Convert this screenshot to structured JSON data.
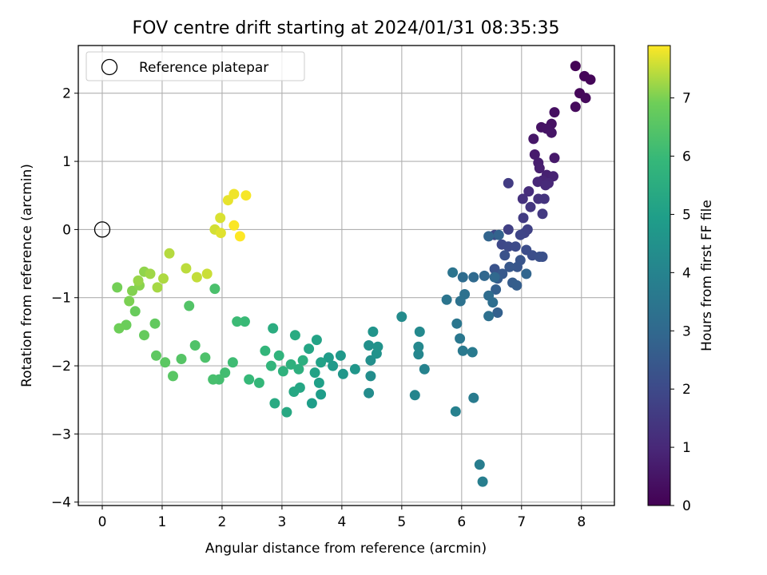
{
  "chart_data": {
    "type": "scatter",
    "title": "FOV centre drift starting at 2024/01/31 08:35:35",
    "xlabel": "Angular distance from reference (arcmin)",
    "ylabel": "Rotation from reference (arcmin)",
    "colorbar_label": "Hours from first FF file",
    "colormap": "viridis",
    "xlim": [
      -0.4,
      8.55
    ],
    "ylim": [
      -4.05,
      2.7
    ],
    "clim": [
      0,
      7.9
    ],
    "xticks": [
      "0",
      "1",
      "2",
      "3",
      "4",
      "5",
      "6",
      "7",
      "8"
    ],
    "yticks": [
      "−4",
      "−3",
      "−2",
      "−1",
      "0",
      "1",
      "2"
    ],
    "colorbar_ticks": [
      "0",
      "1",
      "2",
      "3",
      "4",
      "5",
      "6",
      "7"
    ],
    "grid": true,
    "legend": {
      "placement": "upper-left",
      "entries": [
        {
          "label": "Reference platepar",
          "marker": "hollow-circle",
          "x": 0,
          "y": 0
        }
      ]
    },
    "series": [
      {
        "points": [
          [
            7.9,
            2.4,
            0.05
          ],
          [
            8.05,
            2.25,
            0.1
          ],
          [
            8.15,
            2.2,
            0.12
          ],
          [
            7.97,
            2.0,
            0.15
          ],
          [
            8.07,
            1.93,
            0.2
          ],
          [
            7.9,
            1.8,
            0.22
          ],
          [
            7.55,
            1.72,
            0.35
          ],
          [
            7.5,
            1.55,
            0.4
          ],
          [
            7.33,
            1.5,
            0.45
          ],
          [
            7.42,
            1.48,
            0.48
          ],
          [
            7.5,
            1.42,
            0.5
          ],
          [
            7.2,
            1.33,
            0.55
          ],
          [
            7.55,
            1.05,
            0.6
          ],
          [
            7.22,
            1.1,
            0.65
          ],
          [
            7.28,
            0.98,
            0.7
          ],
          [
            7.3,
            0.9,
            0.75
          ],
          [
            7.42,
            0.8,
            0.8
          ],
          [
            7.53,
            0.78,
            0.85
          ],
          [
            7.35,
            0.72,
            0.9
          ],
          [
            7.45,
            0.68,
            0.95
          ],
          [
            7.27,
            0.7,
            1.0
          ],
          [
            7.4,
            0.65,
            1.05
          ],
          [
            7.12,
            0.56,
            1.15
          ],
          [
            7.02,
            0.45,
            1.25
          ],
          [
            7.28,
            0.45,
            1.3
          ],
          [
            7.38,
            0.45,
            1.35
          ],
          [
            7.15,
            0.33,
            1.4
          ],
          [
            7.35,
            0.23,
            1.5
          ],
          [
            7.03,
            0.17,
            1.55
          ],
          [
            6.78,
            0.68,
            1.6
          ],
          [
            6.78,
            0.0,
            1.7
          ],
          [
            7.1,
            0.0,
            1.75
          ],
          [
            7.05,
            -0.05,
            1.8
          ],
          [
            6.98,
            -0.08,
            1.85
          ],
          [
            6.55,
            -0.08,
            1.9
          ],
          [
            6.67,
            -0.22,
            1.95
          ],
          [
            6.78,
            -0.25,
            2.0
          ],
          [
            6.9,
            -0.25,
            2.05
          ],
          [
            7.08,
            -0.3,
            2.1
          ],
          [
            7.18,
            -0.38,
            2.15
          ],
          [
            7.3,
            -0.4,
            2.2
          ],
          [
            7.35,
            -0.4,
            2.2
          ],
          [
            6.72,
            -0.38,
            2.25
          ],
          [
            6.55,
            -0.58,
            2.3
          ],
          [
            6.98,
            -0.45,
            2.35
          ],
          [
            6.93,
            -0.55,
            2.4
          ],
          [
            6.8,
            -0.55,
            2.45
          ],
          [
            6.68,
            -0.65,
            2.5
          ],
          [
            6.6,
            -0.72,
            2.55
          ],
          [
            6.85,
            -0.78,
            2.6
          ],
          [
            6.92,
            -0.82,
            2.65
          ],
          [
            6.57,
            -0.88,
            2.7
          ],
          [
            6.6,
            -1.22,
            2.75
          ],
          [
            6.62,
            -0.08,
            2.8
          ],
          [
            6.45,
            -0.1,
            2.85
          ],
          [
            7.08,
            -0.65,
            2.9
          ],
          [
            6.38,
            -0.68,
            2.95
          ],
          [
            6.55,
            -0.7,
            3.0
          ],
          [
            6.2,
            -0.7,
            3.05
          ],
          [
            6.02,
            -0.7,
            3.1
          ],
          [
            6.45,
            -0.97,
            3.15
          ],
          [
            6.52,
            -1.07,
            3.2
          ],
          [
            6.45,
            -1.27,
            3.25
          ],
          [
            6.05,
            -0.95,
            3.3
          ],
          [
            5.98,
            -1.05,
            3.35
          ],
          [
            5.85,
            -0.63,
            3.4
          ],
          [
            5.75,
            -1.03,
            3.45
          ],
          [
            5.92,
            -1.38,
            3.5
          ],
          [
            5.97,
            -1.6,
            3.55
          ],
          [
            6.02,
            -1.78,
            3.6
          ],
          [
            6.18,
            -1.8,
            3.65
          ],
          [
            6.2,
            -2.47,
            3.7
          ],
          [
            6.3,
            -3.45,
            3.75
          ],
          [
            6.35,
            -3.7,
            3.8
          ],
          [
            5.9,
            -2.67,
            3.9
          ],
          [
            5.38,
            -2.05,
            4.0
          ],
          [
            5.22,
            -2.43,
            4.05
          ],
          [
            5.28,
            -1.83,
            4.1
          ],
          [
            5.28,
            -1.72,
            4.15
          ],
          [
            5.3,
            -1.5,
            4.2
          ],
          [
            5.0,
            -1.28,
            4.25
          ],
          [
            4.45,
            -2.4,
            4.3
          ],
          [
            4.48,
            -2.15,
            4.35
          ],
          [
            4.48,
            -1.92,
            4.4
          ],
          [
            4.45,
            -1.7,
            4.45
          ],
          [
            4.58,
            -1.82,
            4.5
          ],
          [
            4.6,
            -1.72,
            4.55
          ],
          [
            4.52,
            -1.5,
            4.6
          ],
          [
            4.22,
            -2.05,
            4.65
          ],
          [
            4.02,
            -2.12,
            4.7
          ],
          [
            3.98,
            -1.85,
            4.75
          ],
          [
            3.85,
            -2.0,
            4.8
          ],
          [
            3.78,
            -1.88,
            4.85
          ],
          [
            3.65,
            -2.42,
            4.9
          ],
          [
            3.5,
            -2.55,
            4.95
          ],
          [
            3.62,
            -2.25,
            5.0
          ],
          [
            3.65,
            -1.95,
            5.05
          ],
          [
            3.55,
            -2.1,
            5.1
          ],
          [
            3.58,
            -1.62,
            5.15
          ],
          [
            3.45,
            -1.75,
            5.2
          ],
          [
            3.3,
            -2.32,
            5.25
          ],
          [
            3.2,
            -2.38,
            5.3
          ],
          [
            3.08,
            -2.68,
            5.35
          ],
          [
            2.88,
            -2.55,
            5.4
          ],
          [
            3.22,
            -1.55,
            5.45
          ],
          [
            2.85,
            -1.45,
            5.5
          ],
          [
            3.35,
            -1.92,
            5.55
          ],
          [
            3.28,
            -2.05,
            5.6
          ],
          [
            3.15,
            -1.98,
            5.65
          ],
          [
            3.02,
            -2.08,
            5.7
          ],
          [
            2.95,
            -1.85,
            5.75
          ],
          [
            2.82,
            -2.0,
            5.8
          ],
          [
            2.72,
            -1.78,
            5.85
          ],
          [
            2.62,
            -2.25,
            5.9
          ],
          [
            2.45,
            -2.2,
            5.95
          ],
          [
            2.38,
            -1.35,
            6.0
          ],
          [
            2.25,
            -1.35,
            6.05
          ],
          [
            2.18,
            -1.95,
            6.1
          ],
          [
            2.05,
            -2.1,
            6.15
          ],
          [
            1.95,
            -2.2,
            6.2
          ],
          [
            1.85,
            -2.2,
            6.25
          ],
          [
            1.88,
            -0.87,
            6.3
          ],
          [
            1.72,
            -1.88,
            6.35
          ],
          [
            1.55,
            -1.7,
            6.4
          ],
          [
            1.45,
            -1.12,
            6.45
          ],
          [
            1.32,
            -1.9,
            6.5
          ],
          [
            1.18,
            -2.15,
            6.55
          ],
          [
            1.05,
            -1.95,
            6.6
          ],
          [
            0.9,
            -1.85,
            6.65
          ],
          [
            0.88,
            -1.38,
            6.7
          ],
          [
            0.7,
            -1.55,
            6.75
          ],
          [
            0.55,
            -1.2,
            6.8
          ],
          [
            0.4,
            -1.4,
            6.85
          ],
          [
            0.28,
            -1.45,
            6.9
          ],
          [
            0.25,
            -0.85,
            6.95
          ],
          [
            0.45,
            -1.05,
            7.0
          ],
          [
            0.5,
            -0.9,
            7.05
          ],
          [
            0.62,
            -0.82,
            7.1
          ],
          [
            0.7,
            -0.62,
            7.15
          ],
          [
            0.6,
            -0.75,
            7.2
          ],
          [
            0.8,
            -0.65,
            7.25
          ],
          [
            0.92,
            -0.85,
            7.3
          ],
          [
            1.02,
            -0.72,
            7.35
          ],
          [
            1.12,
            -0.35,
            7.4
          ],
          [
            1.4,
            -0.57,
            7.45
          ],
          [
            1.58,
            -0.7,
            7.5
          ],
          [
            1.75,
            -0.65,
            7.55
          ],
          [
            1.88,
            0.0,
            7.6
          ],
          [
            1.97,
            0.17,
            7.65
          ],
          [
            1.98,
            -0.05,
            7.7
          ],
          [
            2.1,
            0.43,
            7.75
          ],
          [
            2.2,
            0.52,
            7.8
          ],
          [
            2.4,
            0.5,
            7.85
          ],
          [
            2.2,
            0.06,
            7.88
          ],
          [
            2.3,
            -0.1,
            7.9
          ]
        ]
      }
    ]
  }
}
